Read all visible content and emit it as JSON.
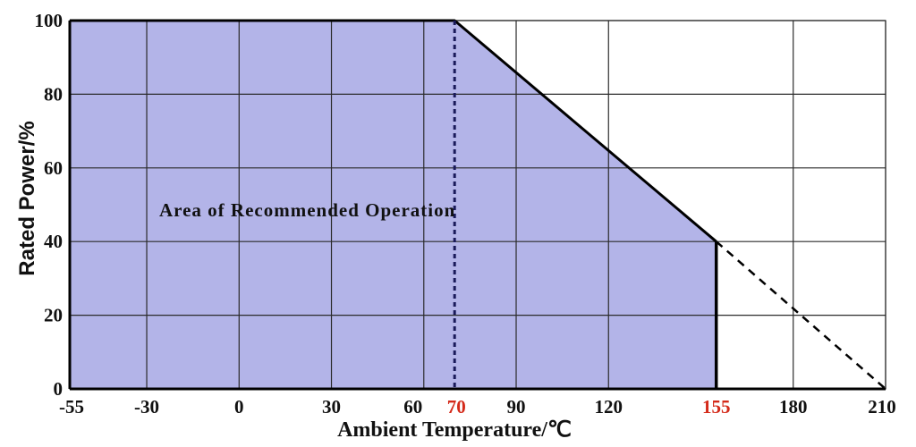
{
  "chart_data": {
    "type": "area",
    "ylabel": "Rated Power/%",
    "xlabel": "Ambient Temperature/℃",
    "annotation": "Area of Recommended Operation",
    "x_ticks": [
      -55,
      -30,
      0,
      30,
      60,
      70,
      90,
      120,
      155,
      180,
      210
    ],
    "x_ticks_highlighted": [
      70,
      155
    ],
    "y_ticks": [
      0,
      20,
      40,
      60,
      80,
      100
    ],
    "xlim": [
      -55,
      210
    ],
    "ylim": [
      0,
      100
    ],
    "grid": true,
    "series": [
      {
        "style": "solid",
        "x": [
          -55,
          70,
          155
        ],
        "y": [
          100,
          100,
          40
        ]
      },
      {
        "style": "dashed",
        "x": [
          155,
          210
        ],
        "y": [
          40,
          0
        ]
      }
    ],
    "filled_region": {
      "x": [
        -55,
        70,
        155,
        155,
        -55
      ],
      "y": [
        100,
        100,
        40,
        0,
        0
      ]
    },
    "dotted_marker_x": 70,
    "solid_marker_x": 155,
    "colors": {
      "fill": "#b3b4e8",
      "grid": "#2b2b2b",
      "line": "#000000",
      "highlight_tick": "#d42a1a"
    }
  }
}
